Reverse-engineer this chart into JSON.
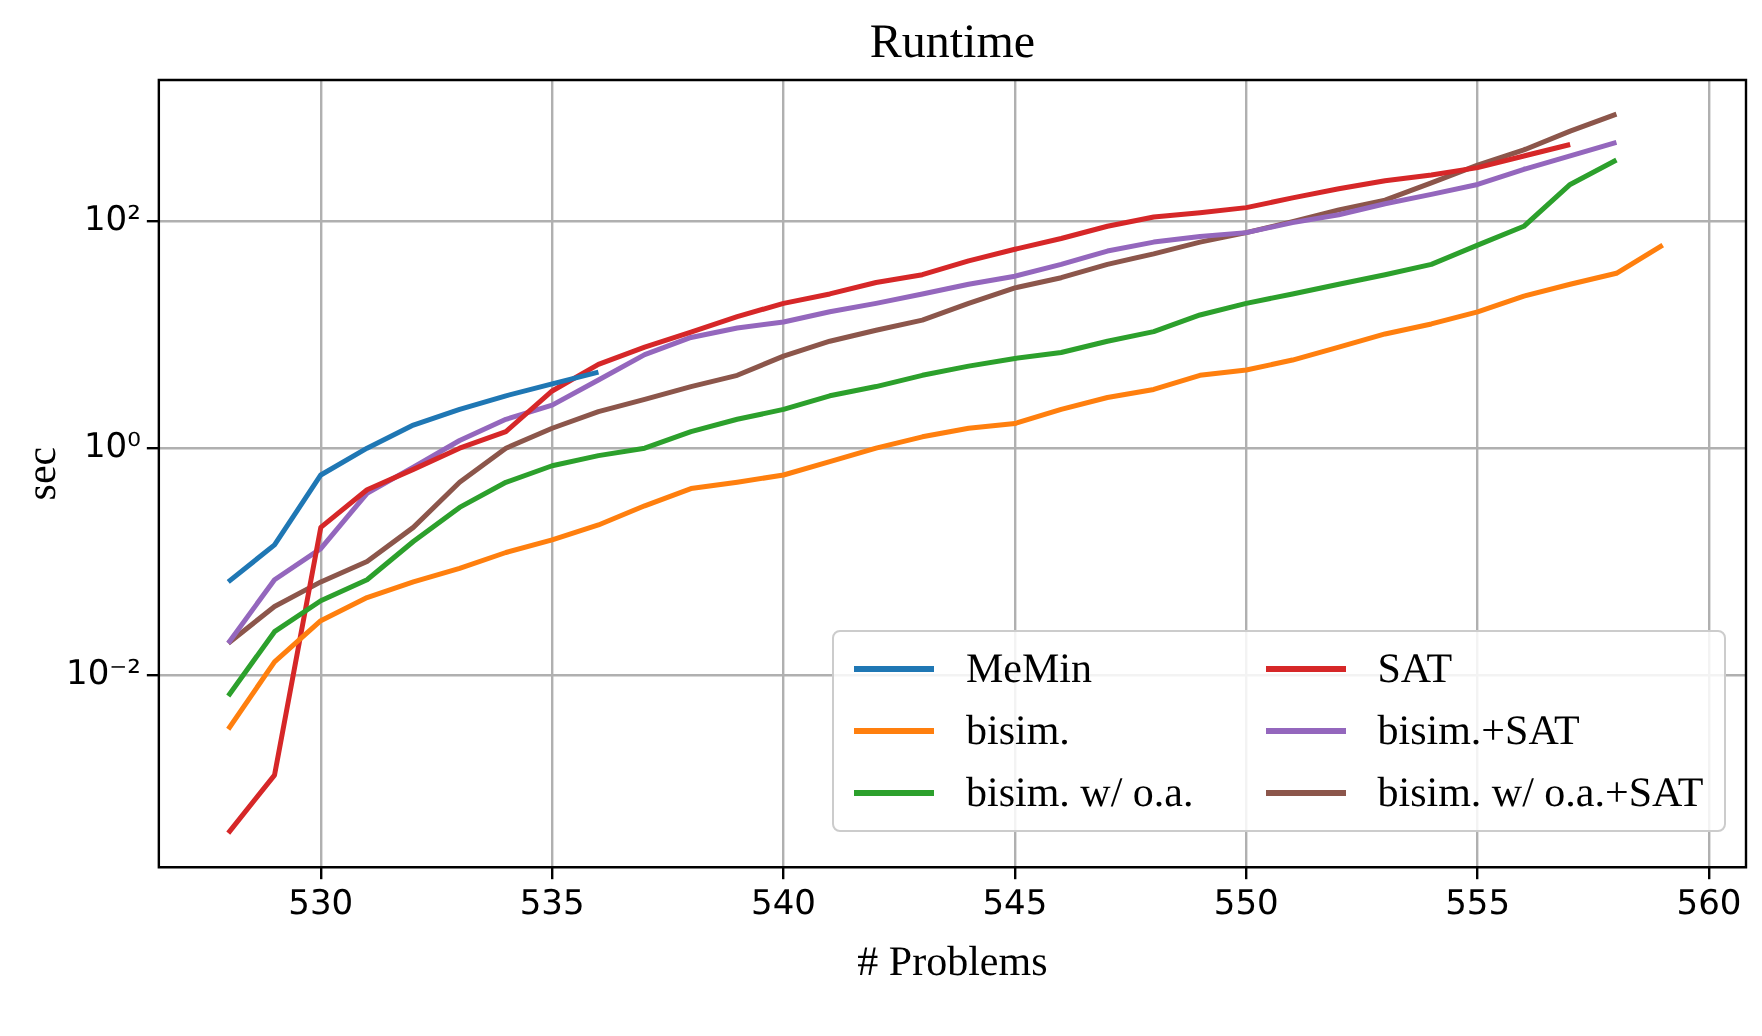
{
  "chart_data": {
    "type": "line",
    "title": "Runtime",
    "xlabel": "# Problems",
    "ylabel": "sec",
    "log": "y",
    "grid": true,
    "legend": "bottom right",
    "xlim": [
      526.5,
      560.8
    ],
    "xticks": [
      530,
      535,
      540,
      545,
      550,
      555,
      560
    ],
    "ylim": [
      0.0002,
      1780
    ],
    "yticks": [
      {
        "value": 0.01,
        "label": "10⁻²"
      },
      {
        "value": 1,
        "label": "10⁰"
      },
      {
        "value": 100,
        "label": "10²"
      }
    ],
    "x": [
      528,
      529,
      530,
      531,
      532,
      533,
      534,
      535,
      536,
      537,
      538,
      539,
      540,
      541,
      542,
      543,
      544,
      545,
      546,
      547,
      548,
      549,
      550,
      551,
      552,
      553,
      554,
      555,
      556,
      557,
      558,
      559
    ],
    "series": [
      {
        "name": "MeMin",
        "color": "#1f77b4",
        "values": [
          0.066,
          0.14,
          0.58,
          1.0,
          1.6,
          2.2,
          2.9,
          3.7,
          4.7,
          null,
          null,
          null,
          null,
          null,
          null,
          null,
          null,
          null,
          null,
          null,
          null,
          null,
          null,
          null,
          null,
          null,
          null,
          null,
          null,
          null,
          null,
          null
        ]
      },
      {
        "name": "bisim.",
        "color": "#ff7f0e",
        "values": [
          0.0033,
          0.013,
          0.03,
          0.048,
          0.066,
          0.087,
          0.12,
          0.155,
          0.21,
          0.31,
          0.44,
          0.5,
          0.58,
          0.76,
          1.0,
          1.26,
          1.5,
          1.65,
          2.2,
          2.8,
          3.3,
          4.4,
          4.9,
          6.0,
          7.8,
          10.2,
          12.5,
          16,
          22,
          28,
          35,
          62
        ]
      },
      {
        "name": "bisim. w/ o.a.",
        "color": "#2ca02c",
        "values": [
          0.0065,
          0.024,
          0.045,
          0.069,
          0.15,
          0.3,
          0.5,
          0.7,
          0.86,
          1.0,
          1.4,
          1.8,
          2.2,
          2.9,
          3.5,
          4.4,
          5.3,
          6.2,
          7.0,
          8.8,
          10.7,
          15,
          19,
          23,
          28,
          34,
          42,
          62,
          91,
          213,
          350,
          null
        ]
      },
      {
        "name": "SAT",
        "color": "#d62728",
        "values": [
          0.0004,
          0.0013,
          0.2,
          0.43,
          0.65,
          1.0,
          1.4,
          3.2,
          5.5,
          7.8,
          10.6,
          14.5,
          19,
          23,
          29,
          34,
          45,
          57,
          71,
          91,
          110,
          120,
          133,
          162,
          195,
          230,
          258,
          300,
          380,
          480,
          null,
          null
        ]
      },
      {
        "name": "bisim.+SAT",
        "color": "#9467bd",
        "values": [
          0.019,
          0.069,
          0.13,
          0.4,
          0.68,
          1.17,
          1.8,
          2.4,
          4.0,
          6.7,
          9.5,
          11.5,
          13,
          16,
          19,
          23,
          28,
          33,
          42,
          55,
          66,
          74,
          80,
          98,
          115,
          144,
          174,
          213,
          290,
          380,
          500,
          null
        ]
      },
      {
        "name": "bisim. w/ o.a.+SAT",
        "color": "#8c564b",
        "values": [
          0.019,
          0.04,
          0.066,
          0.1,
          0.2,
          0.5,
          1.0,
          1.5,
          2.1,
          2.7,
          3.5,
          4.4,
          6.5,
          8.8,
          11,
          13.5,
          19,
          26,
          32,
          42,
          52,
          66,
          80,
          100,
          127,
          155,
          220,
          315,
          430,
          630,
          890,
          null
        ]
      }
    ]
  }
}
